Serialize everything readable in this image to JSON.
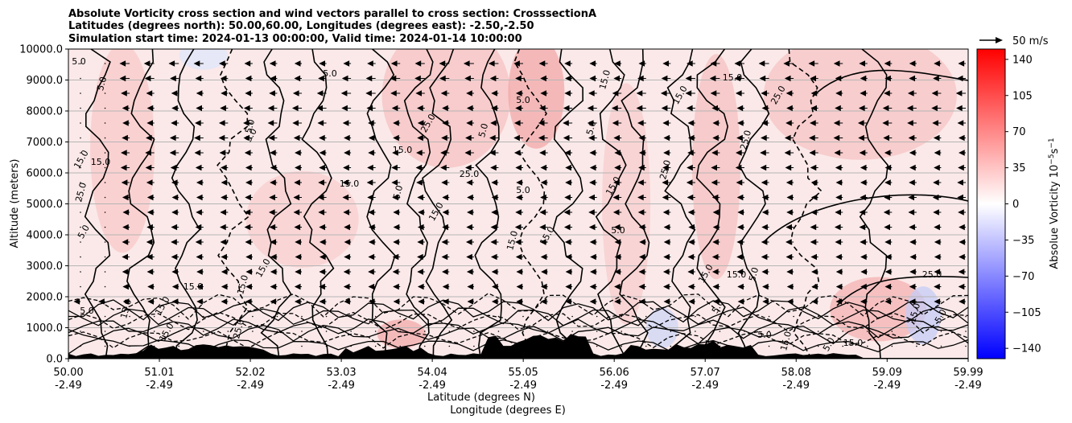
{
  "chart_data": {
    "type": "heatmap",
    "title_lines": [
      "Absolute Vorticity cross section and wind vectors parallel to cross section: CrosssectionA",
      "Latitudes (degrees north): 50.00,60.00, Longitudes (degrees east): -2.50,-2.50",
      "Simulation start time: 2024-01-13 00:00:00, Valid time: 2024-01-14 10:00:00"
    ],
    "xlabel_lines": [
      "Latitude (degrees N)",
      "Longitude (degrees E)"
    ],
    "ylabel": "Altitude (meters)",
    "xlim": [
      50.0,
      59.99
    ],
    "ylim": [
      0,
      10000
    ],
    "x_ticks": [
      {
        "lat": "50.00",
        "lon": "-2.49",
        "v": 50.0
      },
      {
        "lat": "51.01",
        "lon": "-2.49",
        "v": 51.01
      },
      {
        "lat": "52.02",
        "lon": "-2.49",
        "v": 52.02
      },
      {
        "lat": "53.03",
        "lon": "-2.49",
        "v": 53.03
      },
      {
        "lat": "54.04",
        "lon": "-2.49",
        "v": 54.04
      },
      {
        "lat": "55.05",
        "lon": "-2.49",
        "v": 55.05
      },
      {
        "lat": "56.06",
        "lon": "-2.49",
        "v": 56.06
      },
      {
        "lat": "57.07",
        "lon": "-2.49",
        "v": 57.07
      },
      {
        "lat": "58.08",
        "lon": "-2.49",
        "v": 58.08
      },
      {
        "lat": "59.09",
        "lon": "-2.49",
        "v": 59.09
      },
      {
        "lat": "59.99",
        "lon": "-2.49",
        "v": 59.99
      }
    ],
    "y_ticks": [
      {
        "label": "0.0",
        "v": 0
      },
      {
        "label": "1000.0",
        "v": 1000
      },
      {
        "label": "2000.0",
        "v": 2000
      },
      {
        "label": "3000.0",
        "v": 3000
      },
      {
        "label": "4000.0",
        "v": 4000
      },
      {
        "label": "5000.0",
        "v": 5000
      },
      {
        "label": "6000.0",
        "v": 6000
      },
      {
        "label": "7000.0",
        "v": 7000
      },
      {
        "label": "8000.0",
        "v": 8000
      },
      {
        "label": "9000.0",
        "v": 9000
      },
      {
        "label": "10000.0",
        "v": 10000
      }
    ],
    "grid": "horizontal",
    "colorbar": {
      "label": "Absolue Vorticity 10",
      "label_units_exp": "−5",
      "label_units_tail": "s",
      "label_units_exp2": "−1",
      "range": [
        -150,
        150
      ],
      "ticks": [
        {
          "label": "140",
          "v": 140
        },
        {
          "label": "105",
          "v": 105
        },
        {
          "label": "70",
          "v": 70
        },
        {
          "label": "35",
          "v": 35
        },
        {
          "label": "0",
          "v": 0
        },
        {
          "label": "−35",
          "v": -35
        },
        {
          "label": "−70",
          "v": -70
        },
        {
          "label": "−105",
          "v": -105
        },
        {
          "label": "−140",
          "v": -140
        }
      ],
      "colors": {
        "neg": "#0000ff",
        "mid": "#ffffff",
        "pos": "#ff0000"
      }
    },
    "quiver_key": {
      "label": "50 m/s",
      "value": 50
    },
    "contour_labels": [
      "5.0",
      "15.0",
      "25.0"
    ],
    "wind_direction": "southward (towards decreasing latitude) aloft, weak near surface",
    "terrain_color": "#000000"
  }
}
